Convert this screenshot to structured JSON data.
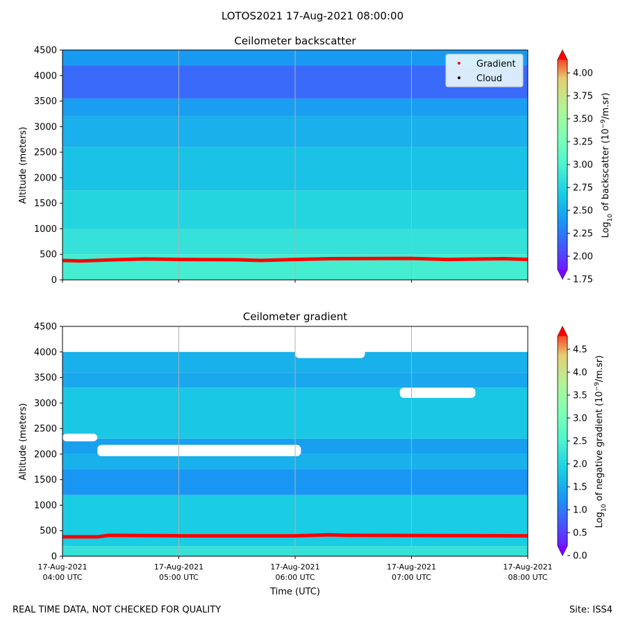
{
  "figure": {
    "suptitle": "LOTOS2021 17-Aug-2021 08:00:00",
    "footer_left": "REAL TIME DATA, NOT CHECKED FOR QUALITY",
    "footer_right": "Site: ISS4"
  },
  "chart_data": [
    {
      "type": "heatmap",
      "title": "Ceilometer backscatter",
      "xlabel": "",
      "ylabel": "Altitude (meters)",
      "ylim": [
        0,
        4500
      ],
      "yticks": [
        "0",
        "500",
        "1000",
        "1500",
        "2000",
        "2500",
        "3000",
        "3500",
        "4000",
        "4500"
      ],
      "xlim_hours_utc": [
        4,
        8
      ],
      "grid": "vertical lines at each hour",
      "colorbar": {
        "label_parts": [
          "Log",
          "10",
          " of backscatter (10",
          "−9",
          "/m.sr)"
        ],
        "range": [
          1.75,
          4.25
        ],
        "ticks": [
          "1.75",
          "2.00",
          "2.25",
          "2.50",
          "2.75",
          "3.00",
          "3.25",
          "3.50",
          "3.75",
          "4.00"
        ],
        "colormap": "rainbow"
      },
      "legend": {
        "placement": "top-right",
        "entries": [
          {
            "label": "Gradient",
            "color": "#ff0000"
          },
          {
            "label": "Cloud",
            "color": "#000000"
          }
        ]
      },
      "layer_profile": [
        {
          "alt_max": 500,
          "value": 2.95
        },
        {
          "alt_max": 1000,
          "value": 2.85
        },
        {
          "alt_max": 1750,
          "value": 2.75
        },
        {
          "alt_max": 2600,
          "value": 2.62
        },
        {
          "alt_max": 3200,
          "value": 2.52
        },
        {
          "alt_max": 3550,
          "value": 2.42
        },
        {
          "alt_max": 4200,
          "value": 2.18
        },
        {
          "alt_max": 4500,
          "value": 2.4
        }
      ],
      "gradient_line": {
        "hours": [
          4.0,
          4.15,
          4.4,
          4.7,
          5.0,
          5.5,
          5.7,
          6.0,
          6.3,
          7.0,
          7.3,
          7.8,
          8.0
        ],
        "altitudes": [
          380,
          370,
          390,
          410,
          400,
          395,
          380,
          400,
          415,
          420,
          400,
          415,
          400
        ]
      }
    },
    {
      "type": "heatmap",
      "title": "Ceilometer gradient",
      "xlabel": "Time (UTC)",
      "ylabel": "Altitude (meters)",
      "ylim": [
        0,
        4500
      ],
      "yticks": [
        "0",
        "500",
        "1000",
        "1500",
        "2000",
        "2500",
        "3000",
        "3500",
        "4000",
        "4500"
      ],
      "xticks": [
        {
          "hour": 4,
          "line1": "17-Aug-2021",
          "line2": "04:00 UTC"
        },
        {
          "hour": 5,
          "line1": "17-Aug-2021",
          "line2": "05:00 UTC"
        },
        {
          "hour": 6,
          "line1": "17-Aug-2021",
          "line2": "06:00 UTC"
        },
        {
          "hour": 7,
          "line1": "17-Aug-2021",
          "line2": "07:00 UTC"
        },
        {
          "hour": 8,
          "line1": "17-Aug-2021",
          "line2": "08:00 UTC"
        }
      ],
      "xlim_hours_utc": [
        4,
        8
      ],
      "grid": "vertical lines at each hour",
      "colorbar": {
        "label_parts": [
          "Log",
          "10",
          " of negative gradient (10",
          "−9",
          "/m.sr)"
        ],
        "range": [
          0.0,
          5.0
        ],
        "ticks": [
          "0.0",
          "0.5",
          "1.0",
          "1.5",
          "2.0",
          "2.5",
          "3.0",
          "3.5",
          "4.0",
          "4.5"
        ],
        "colormap": "rainbow"
      },
      "layer_profile": [
        {
          "alt_max": 200,
          "value": 2.2
        },
        {
          "alt_max": 1200,
          "value": 1.85
        },
        {
          "alt_max": 1700,
          "value": 1.25
        },
        {
          "alt_max": 2000,
          "value": 1.55
        },
        {
          "alt_max": 2300,
          "value": 1.35
        },
        {
          "alt_max": 3300,
          "value": 1.8
        },
        {
          "alt_max": 3600,
          "value": 1.45
        },
        {
          "alt_max": 4000,
          "value": 1.55
        }
      ],
      "no_data_regions": "white gaps near 2000-2350 m (04:00-06:05), above ~4000 m, and scattered patches",
      "gradient_line": {
        "hours": [
          4.0,
          4.3,
          4.4,
          5.0,
          6.0,
          6.3,
          6.45,
          8.0
        ],
        "altitudes": [
          380,
          380,
          410,
          400,
          400,
          420,
          410,
          400
        ]
      }
    }
  ]
}
